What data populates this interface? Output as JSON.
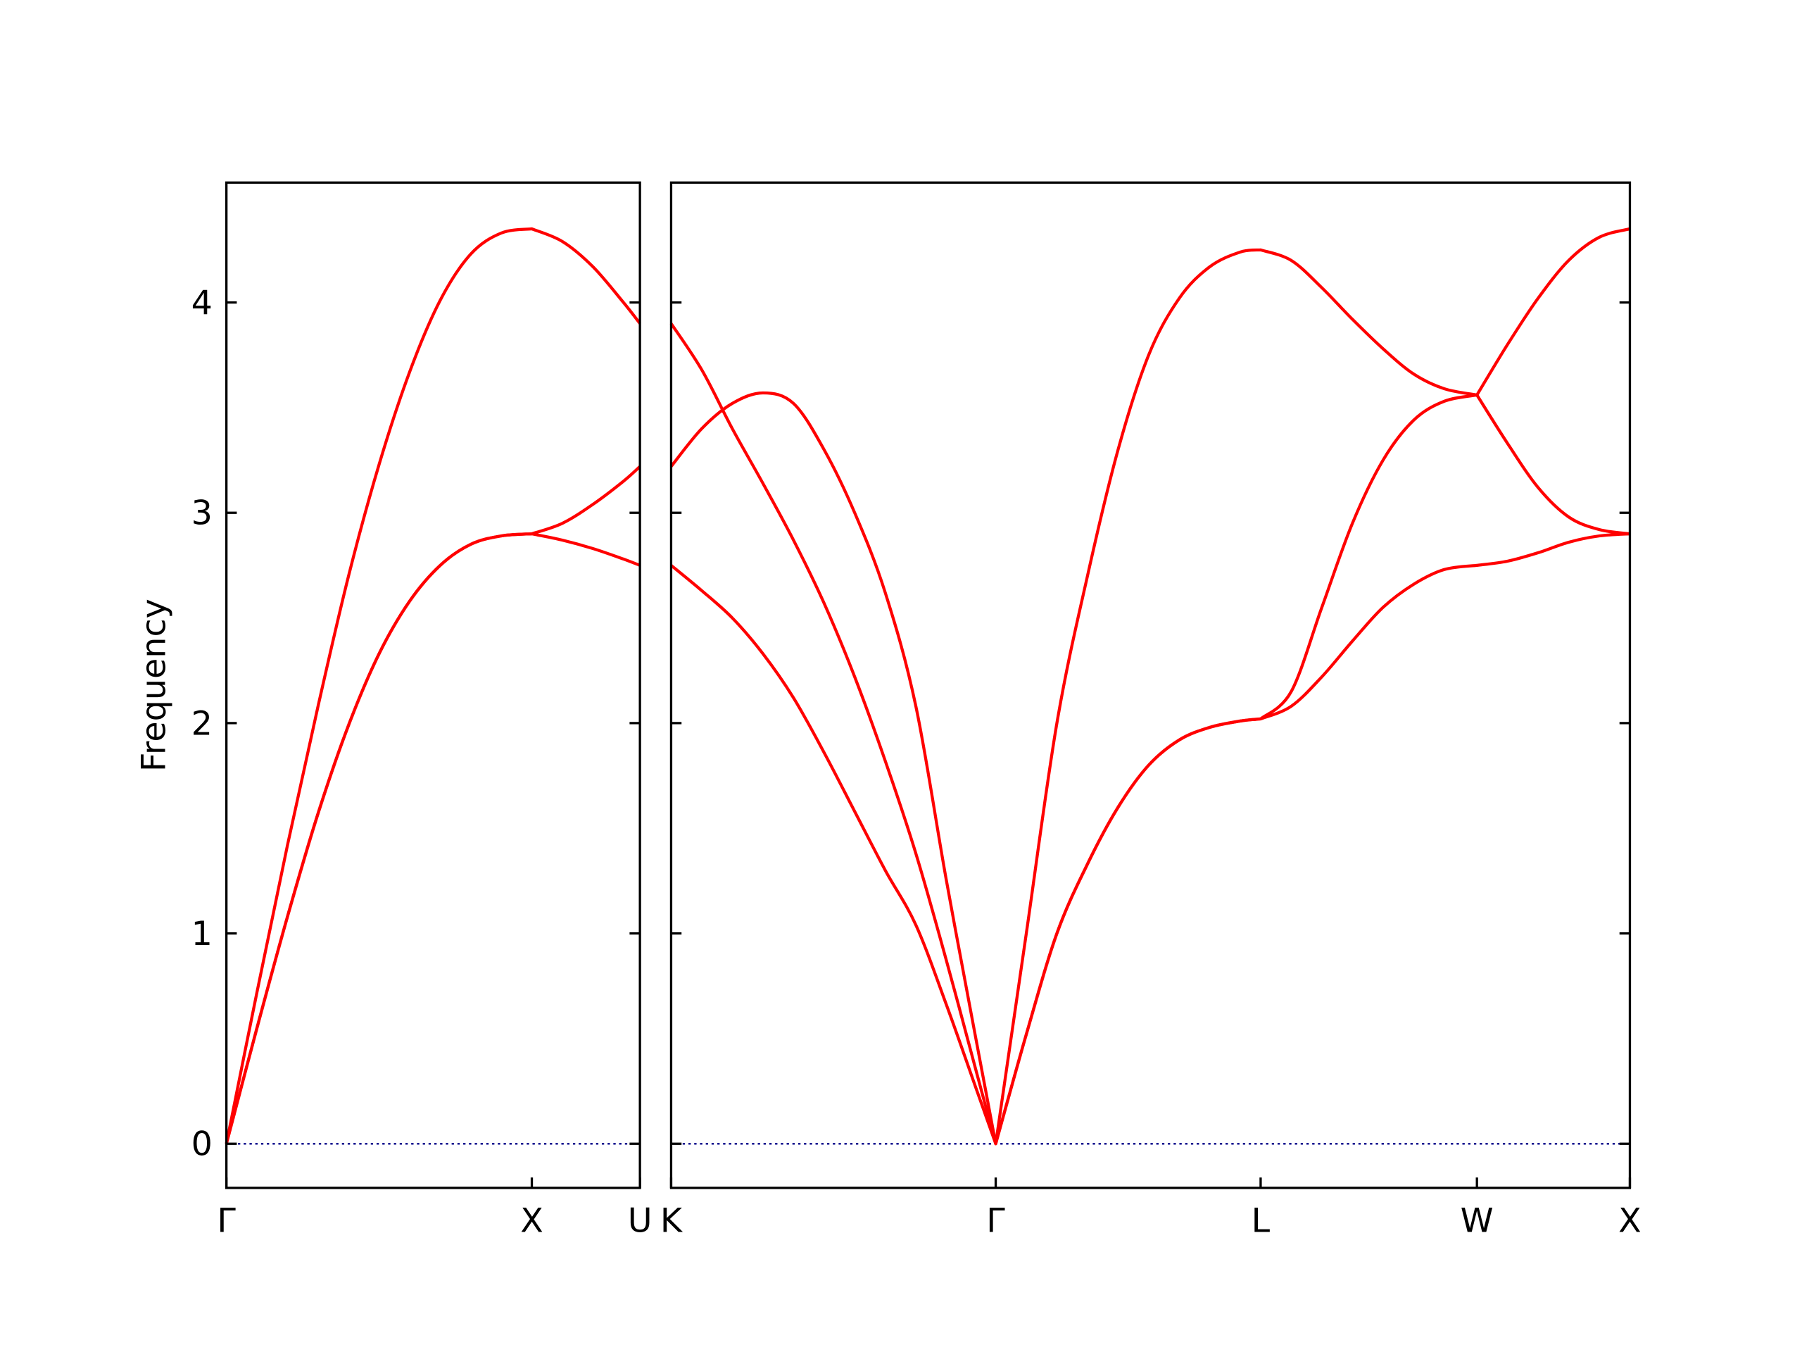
{
  "chart_data": [
    {
      "type": "line",
      "ylabel": "Frequency",
      "x": [
        0,
        0.1,
        0.2,
        0.3,
        0.4,
        0.5,
        0.6,
        0.7,
        0.8,
        0.9,
        1.0,
        1.1,
        1.2,
        1.3,
        1.354
      ],
      "series": [
        {
          "color": "#ff0000",
          "values": [
            0,
            0.72,
            1.42,
            2.08,
            2.7,
            3.23,
            3.67,
            4.01,
            4.23,
            4.33,
            4.35,
            4.29,
            4.17,
            4.0,
            3.9
          ]
        },
        {
          "color": "#ff0000",
          "values": [
            0,
            0.55,
            1.08,
            1.57,
            1.99,
            2.33,
            2.58,
            2.75,
            2.85,
            2.89,
            2.9,
            2.95,
            3.04,
            3.15,
            3.22
          ]
        },
        {
          "color": "#ff0000",
          "values": [
            0,
            0.55,
            1.08,
            1.57,
            1.99,
            2.33,
            2.58,
            2.75,
            2.85,
            2.89,
            2.9,
            2.87,
            2.83,
            2.78,
            2.75
          ]
        }
      ],
      "xlim": [
        0,
        1.354
      ],
      "xticks": [
        {
          "value": 0,
          "label": "Γ"
        },
        {
          "value": 1.0,
          "label": "X"
        },
        {
          "value": 1.354,
          "label": "U"
        }
      ],
      "ylim": [
        -0.21,
        4.57
      ],
      "yticks": [
        0,
        1,
        2,
        3,
        4
      ],
      "ytick_labels": true,
      "hline": {
        "value": 0,
        "color": "#00008b"
      }
    },
    {
      "type": "line",
      "x": [
        0,
        0.1,
        0.2,
        0.3,
        0.4,
        0.5,
        0.6,
        0.7,
        0.8,
        0.9,
        1.0,
        1.061,
        1.161,
        1.261,
        1.361,
        1.461,
        1.561,
        1.661,
        1.761,
        1.861,
        1.927,
        2.027,
        2.127,
        2.227,
        2.327,
        2.427,
        2.527,
        2.634,
        2.734,
        2.834,
        2.934,
        3.034,
        3.134
      ],
      "series": [
        {
          "color": "#ff0000",
          "values": [
            3.9,
            3.68,
            3.4,
            3.14,
            2.87,
            2.57,
            2.22,
            1.82,
            1.38,
            0.87,
            0.33,
            0,
            1.0,
            2.0,
            2.7,
            3.3,
            3.75,
            4.02,
            4.17,
            4.24,
            4.25,
            4.2,
            4.07,
            3.92,
            3.78,
            3.66,
            3.59,
            3.56,
            3.8,
            4.02,
            4.2,
            4.31,
            4.35
          ]
        },
        {
          "color": "#ff0000",
          "values": [
            3.22,
            3.4,
            3.52,
            3.57,
            3.52,
            3.3,
            3.0,
            2.62,
            2.08,
            1.25,
            0.47,
            0,
            0.52,
            1.0,
            1.33,
            1.6,
            1.8,
            1.92,
            1.98,
            2.01,
            2.02,
            2.15,
            2.55,
            2.95,
            3.25,
            3.44,
            3.53,
            3.56,
            3.33,
            3.12,
            2.98,
            2.92,
            2.9
          ]
        },
        {
          "color": "#ff0000",
          "values": [
            2.75,
            2.63,
            2.5,
            2.33,
            2.12,
            1.86,
            1.58,
            1.3,
            1.04,
            0.66,
            0.25,
            0,
            0.52,
            1.0,
            1.33,
            1.6,
            1.8,
            1.92,
            1.98,
            2.01,
            2.02,
            2.08,
            2.22,
            2.39,
            2.55,
            2.66,
            2.73,
            2.75,
            2.77,
            2.81,
            2.86,
            2.89,
            2.9
          ]
        }
      ],
      "xlim": [
        0,
        3.134
      ],
      "xticks": [
        {
          "value": 0,
          "label": "K"
        },
        {
          "value": 1.061,
          "label": "Γ"
        },
        {
          "value": 1.927,
          "label": "L"
        },
        {
          "value": 2.634,
          "label": "W"
        },
        {
          "value": 3.134,
          "label": "X"
        }
      ],
      "ylim": [
        -0.21,
        4.57
      ],
      "yticks": [
        0,
        1,
        2,
        3,
        4
      ],
      "ytick_labels": false,
      "hline": {
        "value": 0,
        "color": "#00008b"
      }
    }
  ]
}
